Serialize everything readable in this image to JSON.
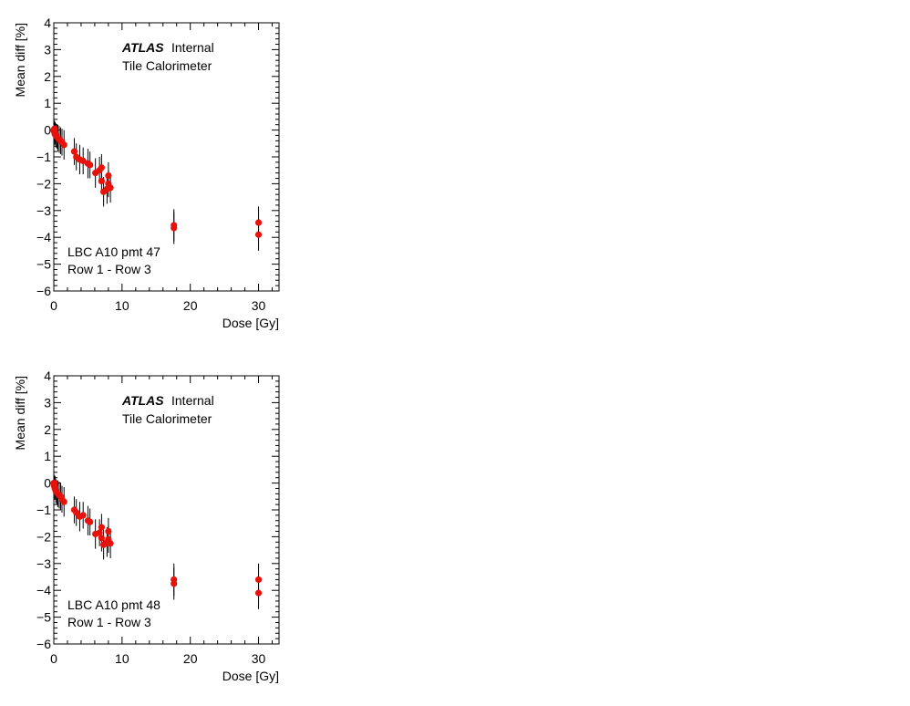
{
  "chart_data": [
    {
      "type": "scatter",
      "xlabel": "Dose [Gy]",
      "ylabel": "Mean diff [%]",
      "xlim": [
        0,
        33
      ],
      "ylim": [
        -6,
        4
      ],
      "xticks": [
        "0",
        "10",
        "20",
        "30"
      ],
      "yticks": [
        "−6",
        "−5",
        "−4",
        "−3",
        "−2",
        "−1",
        "0",
        "1",
        "2",
        "3",
        "4"
      ],
      "experiment": "ATLAS",
      "status": "Internal",
      "detector": "Tile Calorimeter",
      "channel_label": "LBC A10 pmt 47",
      "rows_label": "Row 1 - Row 3",
      "marker_color": "#e8120c",
      "errorbar_color": "#000000",
      "points": [
        {
          "x": 0.0,
          "y": 0.0,
          "err": 0.4
        },
        {
          "x": 0.05,
          "y": -0.05,
          "err": 0.35
        },
        {
          "x": 0.1,
          "y": 0.05,
          "err": 0.3
        },
        {
          "x": 0.15,
          "y": -0.15,
          "err": 0.4
        },
        {
          "x": 0.2,
          "y": -0.1,
          "err": 0.4
        },
        {
          "x": 0.3,
          "y": -0.2,
          "err": 0.45
        },
        {
          "x": 0.45,
          "y": -0.25,
          "err": 0.45
        },
        {
          "x": 0.6,
          "y": -0.3,
          "err": 0.5
        },
        {
          "x": 0.8,
          "y": -0.35,
          "err": 0.5
        },
        {
          "x": 1.0,
          "y": -0.4,
          "err": 0.5
        },
        {
          "x": 1.2,
          "y": -0.45,
          "err": 0.5
        },
        {
          "x": 1.5,
          "y": -0.55,
          "err": 0.55
        },
        {
          "x": 3.0,
          "y": -0.8,
          "err": 0.5
        },
        {
          "x": 3.3,
          "y": -1.0,
          "err": 0.5
        },
        {
          "x": 3.8,
          "y": -1.1,
          "err": 0.55
        },
        {
          "x": 4.3,
          "y": -1.15,
          "err": 0.5
        },
        {
          "x": 5.0,
          "y": -1.25,
          "err": 0.55
        },
        {
          "x": 5.3,
          "y": -1.3,
          "err": 0.5
        },
        {
          "x": 6.1,
          "y": -1.6,
          "err": 0.55
        },
        {
          "x": 6.7,
          "y": -1.5,
          "err": 0.5
        },
        {
          "x": 7.0,
          "y": -1.4,
          "err": 0.5
        },
        {
          "x": 7.0,
          "y": -1.9,
          "err": 0.5
        },
        {
          "x": 7.3,
          "y": -2.3,
          "err": 0.55
        },
        {
          "x": 7.8,
          "y": -2.2,
          "err": 0.55
        },
        {
          "x": 8.0,
          "y": -1.7,
          "err": 0.5
        },
        {
          "x": 8.0,
          "y": -2.0,
          "err": 0.5
        },
        {
          "x": 8.3,
          "y": -2.15,
          "err": 0.55
        },
        {
          "x": 17.6,
          "y": -3.55,
          "err": 0.6
        },
        {
          "x": 17.6,
          "y": -3.65,
          "err": 0.6
        },
        {
          "x": 30.0,
          "y": -3.45,
          "err": 0.6
        },
        {
          "x": 30.0,
          "y": -3.9,
          "err": 0.6
        }
      ]
    },
    {
      "type": "scatter",
      "xlabel": "Dose [Gy]",
      "ylabel": "Mean diff [%]",
      "xlim": [
        0,
        33
      ],
      "ylim": [
        -6,
        4
      ],
      "xticks": [
        "0",
        "10",
        "20",
        "30"
      ],
      "yticks": [
        "−6",
        "−5",
        "−4",
        "−3",
        "−2",
        "−1",
        "0",
        "1",
        "2",
        "3",
        "4"
      ],
      "experiment": "ATLAS",
      "status": "Internal",
      "detector": "Tile Calorimeter",
      "channel_label": "LBC A10 pmt 48",
      "rows_label": "Row 1 - Row 3",
      "marker_color": "#e8120c",
      "errorbar_color": "#000000",
      "points": [
        {
          "x": 0.0,
          "y": 0.0,
          "err": 0.4
        },
        {
          "x": 0.05,
          "y": -0.1,
          "err": 0.35
        },
        {
          "x": 0.1,
          "y": 0.0,
          "err": 0.3
        },
        {
          "x": 0.15,
          "y": -0.2,
          "err": 0.4
        },
        {
          "x": 0.2,
          "y": -0.15,
          "err": 0.4
        },
        {
          "x": 0.3,
          "y": -0.3,
          "err": 0.45
        },
        {
          "x": 0.45,
          "y": -0.35,
          "err": 0.45
        },
        {
          "x": 0.6,
          "y": -0.4,
          "err": 0.5
        },
        {
          "x": 0.8,
          "y": -0.45,
          "err": 0.5
        },
        {
          "x": 1.0,
          "y": -0.5,
          "err": 0.5
        },
        {
          "x": 1.2,
          "y": -0.6,
          "err": 0.5
        },
        {
          "x": 1.5,
          "y": -0.7,
          "err": 0.55
        },
        {
          "x": 3.0,
          "y": -1.0,
          "err": 0.5
        },
        {
          "x": 3.3,
          "y": -1.1,
          "err": 0.5
        },
        {
          "x": 3.8,
          "y": -1.25,
          "err": 0.55
        },
        {
          "x": 4.3,
          "y": -1.2,
          "err": 0.5
        },
        {
          "x": 5.0,
          "y": -1.4,
          "err": 0.55
        },
        {
          "x": 5.3,
          "y": -1.45,
          "err": 0.5
        },
        {
          "x": 6.1,
          "y": -1.9,
          "err": 0.55
        },
        {
          "x": 6.7,
          "y": -1.85,
          "err": 0.5
        },
        {
          "x": 7.0,
          "y": -1.65,
          "err": 0.5
        },
        {
          "x": 7.0,
          "y": -2.05,
          "err": 0.5
        },
        {
          "x": 7.3,
          "y": -2.3,
          "err": 0.55
        },
        {
          "x": 7.8,
          "y": -2.2,
          "err": 0.55
        },
        {
          "x": 8.0,
          "y": -1.8,
          "err": 0.5
        },
        {
          "x": 8.0,
          "y": -2.1,
          "err": 0.5
        },
        {
          "x": 8.3,
          "y": -2.25,
          "err": 0.55
        },
        {
          "x": 17.6,
          "y": -3.6,
          "err": 0.6
        },
        {
          "x": 17.6,
          "y": -3.75,
          "err": 0.6
        },
        {
          "x": 30.0,
          "y": -3.6,
          "err": 0.6
        },
        {
          "x": 30.0,
          "y": -4.1,
          "err": 0.6
        }
      ]
    }
  ]
}
